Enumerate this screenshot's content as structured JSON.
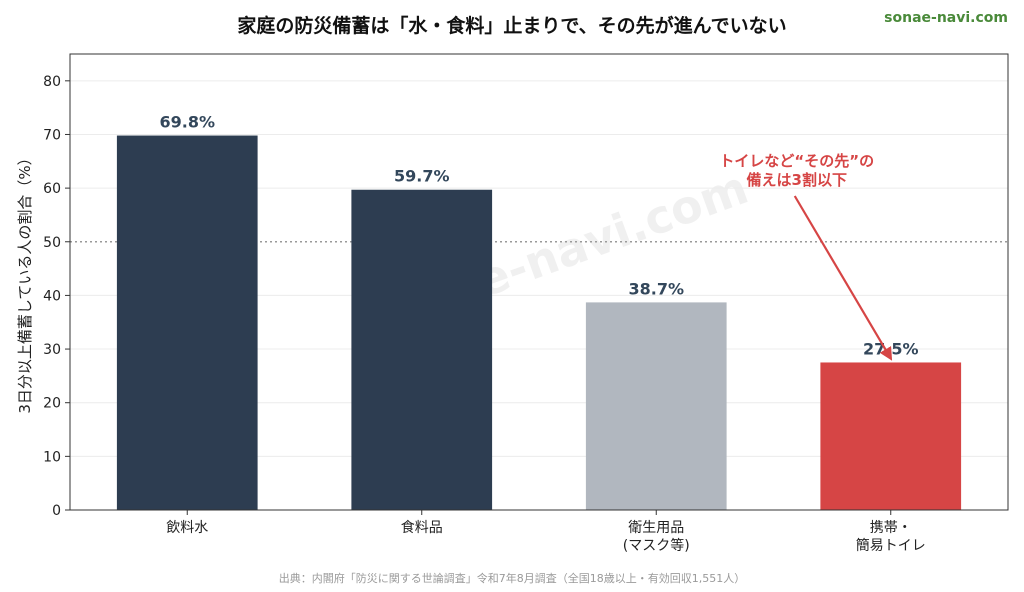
{
  "site": "sonae-navi.com",
  "watermark": "sonae-navi.com",
  "source": "出典：内閣府「防災に関する世論調査」令和7年8月調査（全国18歳以上・有効回収1,551人）",
  "colors": {
    "dark_bar": "#2d3d51",
    "gray_bar": "#b1b7bf",
    "accent": "#d64545",
    "site": "#4a8a3a"
  },
  "chart_data": {
    "type": "bar",
    "title": "家庭の防災備蓄は「水・食料」止まりで、その先が進んでいない",
    "ylabel": "3日分以上備蓄している人の割合（%）",
    "xlabel": "",
    "ylim": [
      0,
      85
    ],
    "yticks": [
      0,
      10,
      20,
      30,
      40,
      50,
      60,
      70,
      80
    ],
    "reference_line": 50,
    "grid": "horizontal",
    "categories": [
      [
        "飲料水"
      ],
      [
        "食料品"
      ],
      [
        "衛生用品",
        "(マスク等)"
      ],
      [
        "携帯・",
        "簡易トイレ"
      ]
    ],
    "values": [
      69.8,
      59.7,
      38.7,
      27.5
    ],
    "value_labels": [
      "69.8%",
      "59.7%",
      "38.7%",
      "27.5%"
    ],
    "bar_colors": [
      "#2d3d51",
      "#2d3d51",
      "#b1b7bf",
      "#d64545"
    ],
    "annotation": {
      "lines": [
        "トイレなど“その先”の",
        "備えは3割以下"
      ],
      "target_index": 3
    }
  }
}
